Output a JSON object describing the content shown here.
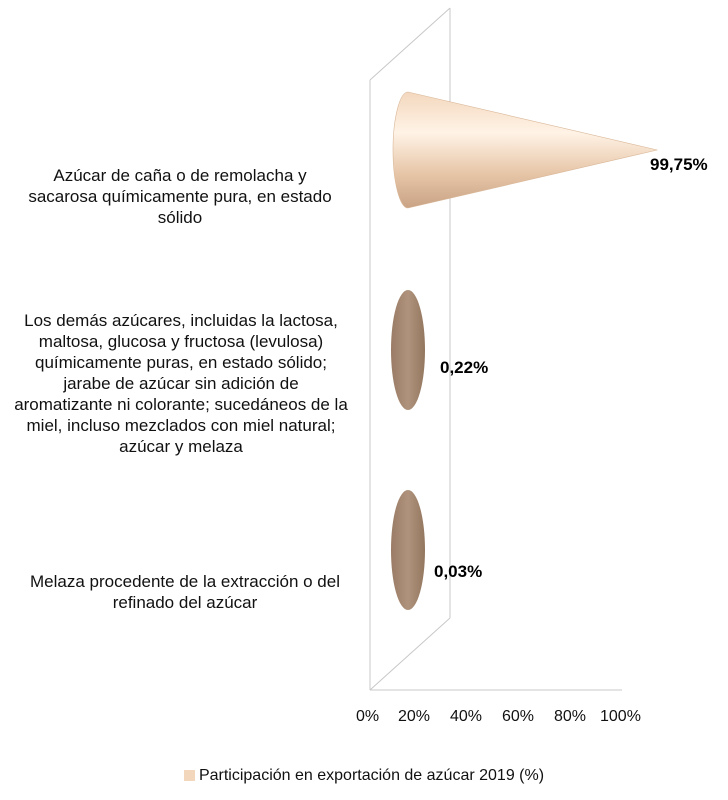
{
  "chart_data": {
    "type": "bar",
    "orientation": "horizontal",
    "shape": "cone",
    "categories": [
      "Azúcar de caña o de remolacha y sacarosa químicamente pura, en estado sólido",
      "Los demás azúcares, incluidas la lactosa, maltosa, glucosa y fructosa (levulosa) químicamente puras, en estado sólido; jarabe de azúcar sin adición de aromatizante ni colorante; sucedáneos de la miel, incluso mezclados con miel natural; azúcar y melaza",
      "Melaza procedente de la extracción o del refinado del azúcar"
    ],
    "series": [
      {
        "name": "Participación en exportación de azúcar 2019 (%)",
        "values": [
          99.75,
          0.22,
          0.03
        ],
        "labels": [
          "99,75%",
          "0,22%",
          "0,03%"
        ]
      }
    ],
    "xticks": [
      "0%",
      "20%",
      "40%",
      "60%",
      "80%",
      "100%"
    ],
    "xlim": [
      0,
      100
    ],
    "grid": false,
    "legend": "bottom",
    "colors": {
      "cone_light": "#fbe8d6",
      "cone_mid": "#e2bfa0",
      "cone_dark": "#9f7e66",
      "ellipse": "#a78a74",
      "axis": "#c8c8c8"
    }
  }
}
